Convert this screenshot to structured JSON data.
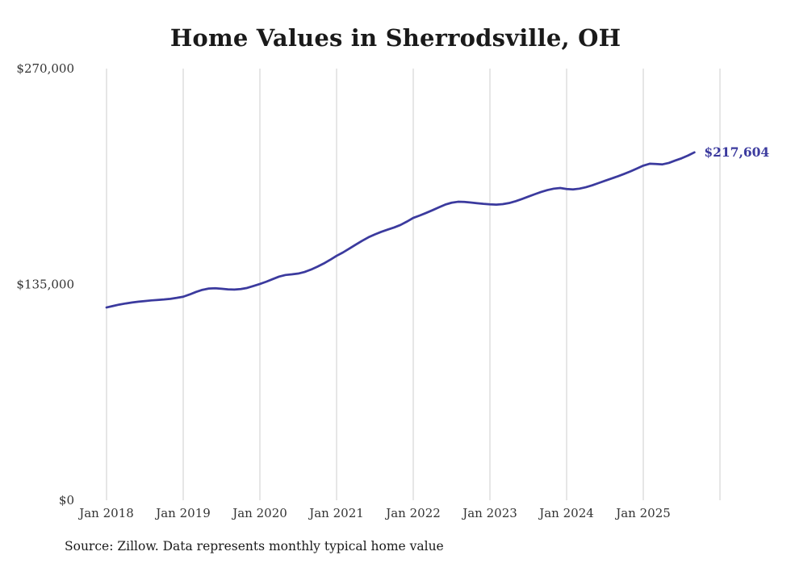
{
  "source_note": "Source: Zillow. Data represents monthly typical home value",
  "colors": {
    "line": "#3b3a9e",
    "grid": "#cccccc",
    "tick_text": "#333333",
    "title_text": "#1a1a1a",
    "background": "#ffffff"
  },
  "chart_data": {
    "type": "line",
    "title": "Home Values in Sherrodsville, OH",
    "xlabel": "",
    "ylabel": "",
    "ylim": [
      0,
      270000
    ],
    "grid": "vertical-gridlines-only",
    "legend": "none",
    "y_ticks": [
      {
        "value": 0,
        "label": "$0"
      },
      {
        "value": 135000,
        "label": "$135,000"
      },
      {
        "value": 270000,
        "label": "$270,000"
      }
    ],
    "x_tick_labels": [
      "Jan 2018",
      "Jan 2019",
      "Jan 2020",
      "Jan 2021",
      "Jan 2022",
      "Jan 2023",
      "Jan 2024",
      "Jan 2025"
    ],
    "num_gridlines": 9,
    "final_value": 217604,
    "final_value_label": "$217,604",
    "series": [
      {
        "name": "Monthly typical home value",
        "x": [
          "2018-01",
          "2018-02",
          "2018-03",
          "2018-04",
          "2018-05",
          "2018-06",
          "2018-07",
          "2018-08",
          "2018-09",
          "2018-10",
          "2018-11",
          "2018-12",
          "2019-01",
          "2019-02",
          "2019-03",
          "2019-04",
          "2019-05",
          "2019-06",
          "2019-07",
          "2019-08",
          "2019-09",
          "2019-10",
          "2019-11",
          "2019-12",
          "2020-01",
          "2020-02",
          "2020-03",
          "2020-04",
          "2020-05",
          "2020-06",
          "2020-07",
          "2020-08",
          "2020-09",
          "2020-10",
          "2020-11",
          "2020-12",
          "2021-01",
          "2021-02",
          "2021-03",
          "2021-04",
          "2021-05",
          "2021-06",
          "2021-07",
          "2021-08",
          "2021-09",
          "2021-10",
          "2021-11",
          "2021-12",
          "2022-01",
          "2022-02",
          "2022-03",
          "2022-04",
          "2022-05",
          "2022-06",
          "2022-07",
          "2022-08",
          "2022-09",
          "2022-10",
          "2022-11",
          "2022-12",
          "2023-01",
          "2023-02",
          "2023-03",
          "2023-04",
          "2023-05",
          "2023-06",
          "2023-07",
          "2023-08",
          "2023-09",
          "2023-10",
          "2023-11",
          "2023-12",
          "2024-01",
          "2024-02",
          "2024-03",
          "2024-04",
          "2024-05",
          "2024-06",
          "2024-07",
          "2024-08",
          "2024-09",
          "2024-10",
          "2024-11",
          "2024-12",
          "2025-01",
          "2025-02",
          "2025-03",
          "2025-04",
          "2025-05",
          "2025-06",
          "2025-07",
          "2025-08",
          "2025-09"
        ],
        "values": [
          120600,
          121500,
          122400,
          123100,
          123700,
          124200,
          124600,
          125000,
          125300,
          125600,
          126000,
          126600,
          127300,
          128700,
          130300,
          131600,
          132400,
          132600,
          132300,
          131900,
          131800,
          132100,
          132800,
          134000,
          135300,
          136700,
          138300,
          139900,
          140900,
          141300,
          141800,
          142800,
          144300,
          146100,
          148100,
          150400,
          152900,
          155000,
          157400,
          159900,
          162300,
          164500,
          166300,
          167900,
          169300,
          170600,
          172200,
          174300,
          176600,
          178100,
          179700,
          181400,
          183200,
          184900,
          186100,
          186700,
          186600,
          186200,
          185800,
          185400,
          185100,
          184900,
          185200,
          185900,
          187000,
          188400,
          189900,
          191400,
          192800,
          194000,
          194900,
          195300,
          194700,
          194400,
          194900,
          195800,
          197000,
          198400,
          199800,
          201200,
          202600,
          204100,
          205700,
          207500,
          209300,
          210500,
          210300,
          210100,
          211000,
          212500,
          213900,
          215600,
          217604
        ]
      }
    ]
  }
}
